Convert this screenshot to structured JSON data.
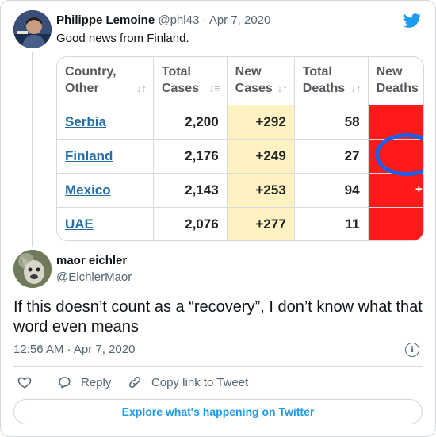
{
  "quoted_tweet": {
    "author_name": "Philippe Lemoine",
    "handle": "@phl43",
    "separator": "·",
    "date": "Apr 7, 2020",
    "text": "Good news from Finland."
  },
  "table": {
    "headers": [
      {
        "line1": "Country,",
        "line2": "Other"
      },
      {
        "line1": "Total",
        "line2": "Cases"
      },
      {
        "line1": "New",
        "line2": "Cases"
      },
      {
        "line1": "Total",
        "line2": "Deaths"
      },
      {
        "line1": "New",
        "line2": "Deaths"
      }
    ],
    "rows": [
      {
        "country": "Serbia",
        "total_cases": "2,200",
        "new_cases": "+292",
        "total_deaths": "58"
      },
      {
        "country": "Finland",
        "total_cases": "2,176",
        "new_cases": "+249",
        "total_deaths": "27"
      },
      {
        "country": "Mexico",
        "total_cases": "2,143",
        "new_cases": "+253",
        "total_deaths": "94"
      },
      {
        "country": "UAE",
        "total_cases": "2,076",
        "new_cases": "+277",
        "total_deaths": "11"
      }
    ],
    "partial_glyph": "+",
    "colors": {
      "new_cases_bg": "#fff2c2",
      "new_deaths_bg": "#ff1a1a",
      "highlight_circle": "#1e5ee8",
      "country_link": "#236ea8"
    }
  },
  "main_tweet": {
    "author_name": "maor eichler",
    "handle": "@EichlerMaor",
    "text": "If this doesn’t count as a “recovery”, I don’t know what that word even means",
    "time": "12:56 AM",
    "separator": "·",
    "date": "Apr 7, 2020",
    "info_glyph": "i"
  },
  "actions": {
    "reply": "Reply",
    "copy_link": "Copy link to Tweet"
  },
  "footer": {
    "explore": "Explore what's happening on Twitter"
  },
  "colors": {
    "twitter_blue": "#1d9bf0",
    "secondary_text": "#536471",
    "border": "#cfd9de"
  }
}
